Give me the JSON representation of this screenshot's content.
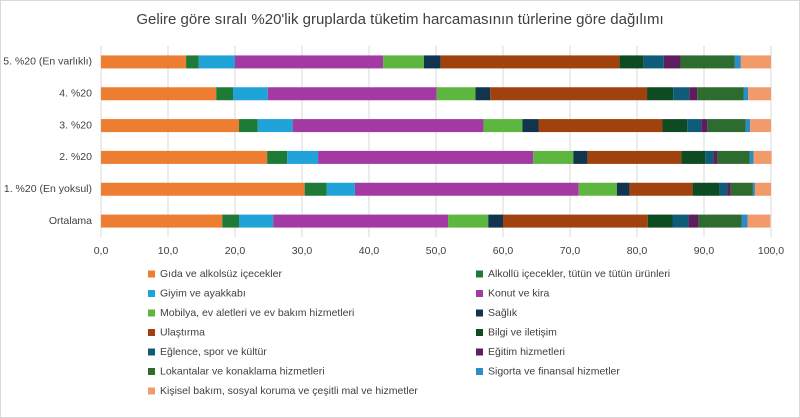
{
  "chart_data": {
    "type": "stacked-bar-horizontal",
    "title": "Gelire göre sıralı %20'lik gruplarda tüketim harcamasının türlerine göre dağılımı",
    "categories": [
      "5. %20 (En varlıklı)",
      "4. %20",
      "3. %20",
      "2. %20",
      "1. %20 (En yoksul)",
      "Ortalama"
    ],
    "xlim": [
      0,
      100
    ],
    "xticks": [
      {
        "value": 0,
        "label": "0,0"
      },
      {
        "value": 10,
        "label": "10,0"
      },
      {
        "value": 20,
        "label": "20,0"
      },
      {
        "value": 30,
        "label": "30,0"
      },
      {
        "value": 40,
        "label": "40,0"
      },
      {
        "value": 50,
        "label": "50,0"
      },
      {
        "value": 60,
        "label": "60,0"
      },
      {
        "value": 70,
        "label": "70,0"
      },
      {
        "value": 80,
        "label": "80,0"
      },
      {
        "value": 90,
        "label": "90,0"
      },
      {
        "value": 100,
        "label": "100,0"
      }
    ],
    "grid": true,
    "series": [
      {
        "name": "Gıda ve alkolsüz içecekler",
        "color": "#ED7D31",
        "values": [
          12.7,
          17.2,
          20.6,
          24.8,
          30.4,
          18.1
        ]
      },
      {
        "name": "Alkollü içecekler, tütün ve tütün ürünleri",
        "color": "#1F7A38",
        "values": [
          1.9,
          2.5,
          2.8,
          3.0,
          3.3,
          2.5
        ]
      },
      {
        "name": "Giyim ve ayakkabı",
        "color": "#1FA3D8",
        "values": [
          5.4,
          5.2,
          5.2,
          4.6,
          4.2,
          5.1
        ]
      },
      {
        "name": "Konut ve kira",
        "color": "#A33AA3",
        "values": [
          22.1,
          25.2,
          28.5,
          32.1,
          33.4,
          26.1
        ]
      },
      {
        "name": "Mobilya, ev aletleri ve ev bakım hizmetleri",
        "color": "#5DB63F",
        "values": [
          6.1,
          5.8,
          5.8,
          6.0,
          5.7,
          6.0
        ]
      },
      {
        "name": "Sağlık",
        "color": "#12354F",
        "values": [
          2.5,
          2.2,
          2.4,
          2.1,
          1.9,
          2.2
        ]
      },
      {
        "name": "Ulaştırma",
        "color": "#A0420E",
        "values": [
          26.7,
          23.4,
          18.5,
          14.0,
          9.4,
          21.6
        ]
      },
      {
        "name": "Bilgi ve iletişim",
        "color": "#0E4A22",
        "values": [
          3.6,
          3.9,
          3.7,
          3.6,
          4.0,
          3.7
        ]
      },
      {
        "name": "Eğlence, spor ve kültür",
        "color": "#0E5C77",
        "values": [
          3.0,
          2.4,
          2.1,
          1.2,
          1.2,
          2.4
        ]
      },
      {
        "name": "Eğitim hizmetleri",
        "color": "#5C1E5C",
        "values": [
          2.5,
          1.2,
          0.9,
          0.6,
          0.5,
          1.5
        ]
      },
      {
        "name": "Lokantalar ve konaklama hizmetleri",
        "color": "#2E6B2E",
        "values": [
          8.1,
          6.9,
          5.7,
          4.8,
          3.3,
          6.4
        ]
      },
      {
        "name": "Sigorta ve finansal hizmetler",
        "color": "#2C8CC7",
        "values": [
          0.9,
          0.7,
          0.7,
          0.6,
          0.3,
          0.9
        ]
      },
      {
        "name": "Kişisel bakım, sosyal koruma ve çeşitli mal ve hizmetler",
        "color": "#F29A6A",
        "values": [
          4.5,
          3.4,
          3.1,
          2.7,
          2.4,
          3.4
        ]
      }
    ]
  }
}
